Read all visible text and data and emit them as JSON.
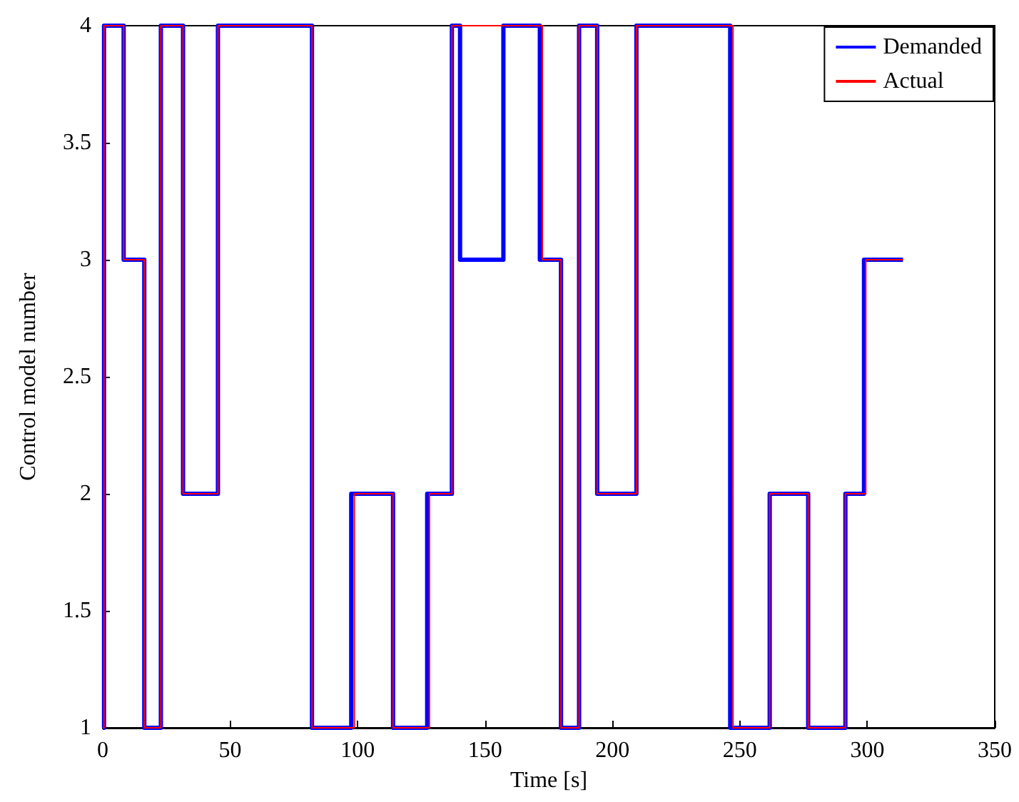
{
  "chart_data": {
    "type": "step",
    "xlabel": "Time [s]",
    "ylabel": "Control model number",
    "xlim": [
      0,
      350
    ],
    "xticks": [
      0,
      50,
      100,
      150,
      200,
      250,
      300,
      350
    ],
    "ylim": [
      1,
      4
    ],
    "yticks": [
      1,
      1.5,
      2,
      2.5,
      3,
      3.5,
      4
    ],
    "grid": false,
    "legend": "top right",
    "series": [
      {
        "name": "Demanded",
        "color": "#0000ff",
        "x": [
          0,
          0.5,
          8.2,
          16.3,
          22.8,
          31.5,
          45.2,
          82.1,
          97.5,
          113.9,
          127.3,
          137,
          140.2,
          157.2,
          171.5,
          179.8,
          186.9,
          194,
          209.4,
          246.2,
          261.7,
          276.8,
          291.4,
          298.7,
          314
        ],
        "values": [
          1,
          4,
          3,
          1,
          4,
          2,
          4,
          1,
          2,
          1,
          2,
          4,
          3,
          4,
          3,
          1,
          4,
          2,
          4,
          1,
          2,
          1,
          2,
          3,
          3
        ]
      },
      {
        "name": "Actual",
        "color": "#ff0000",
        "x": [
          0,
          0.5,
          8.2,
          16.3,
          22.8,
          31.5,
          45.2,
          82.1,
          98.7,
          113.9,
          128.2,
          137,
          172.5,
          179.8,
          186.9,
          194,
          209.4,
          247.3,
          261.7,
          276.8,
          291.4,
          299.4,
          314
        ],
        "values": [
          1,
          4,
          3,
          1,
          4,
          2,
          4,
          1,
          2,
          1,
          2,
          4,
          3,
          1,
          4,
          2,
          4,
          1,
          2,
          1,
          2,
          3,
          3
        ]
      }
    ]
  }
}
